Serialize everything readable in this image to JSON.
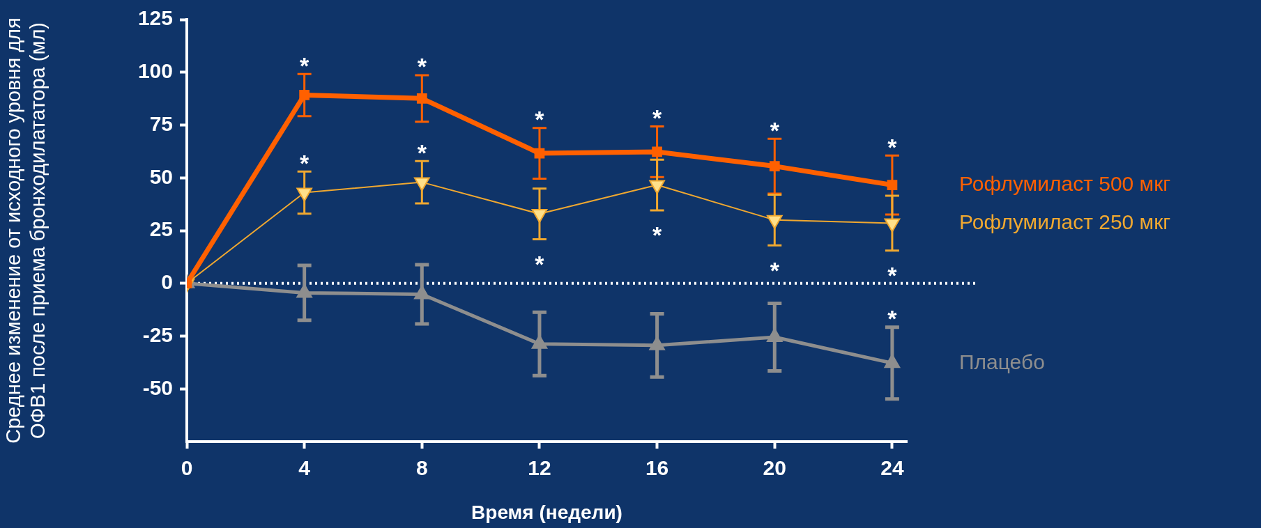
{
  "chart_data": {
    "type": "line",
    "xlabel": "Время (недели)",
    "ylabel": "Среднее изменение от исходного уровня для ОФВ1 после приема бронходилататора (мл)",
    "x": [
      0,
      4,
      8,
      12,
      16,
      20,
      24
    ],
    "xlim": [
      0,
      24.5
    ],
    "xticks": [
      0,
      4,
      8,
      12,
      16,
      20,
      24
    ],
    "ylim": [
      -75,
      125
    ],
    "yticks": [
      -50,
      -25,
      0,
      25,
      50,
      75,
      100,
      125
    ],
    "grid": false,
    "legend": false,
    "series": [
      {
        "name": "Рофлумиласт 500 мкг",
        "color": "#ff6000",
        "marker": "square",
        "values": [
          0,
          89.2,
          87.6,
          61.6,
          62.3,
          55.5,
          46.6
        ],
        "errors": [
          null,
          10,
          11,
          12,
          12,
          13,
          14
        ]
      },
      {
        "name": "Рофлумиласт 250 мкг",
        "color": "#f0a830",
        "marker": "triangle-down",
        "values": [
          0,
          43,
          47.9,
          32.9,
          46.6,
          30,
          28.5
        ],
        "errors": [
          null,
          10,
          10,
          12,
          12,
          12,
          13
        ]
      },
      {
        "name": "Плацебо",
        "color": "#8e8e8e",
        "marker": "triangle",
        "values": [
          0,
          -4.5,
          -5.2,
          -28.7,
          -29.4,
          -25.5,
          -37.8
        ],
        "errors": [
          null,
          13,
          14,
          15,
          15,
          16,
          17
        ]
      }
    ],
    "ref_lines": [
      {
        "axis": "y",
        "value": 0,
        "color": "#ffffff",
        "line_style": "dotted"
      }
    ],
    "annotations": [
      {
        "text": "*",
        "x": 4,
        "y": 89.2
      },
      {
        "text": "*",
        "x": 8,
        "y": 87.6
      },
      {
        "text": "*",
        "x": 12,
        "y": 61.6
      },
      {
        "text": "*",
        "x": 16,
        "y": 62.3
      },
      {
        "text": "*",
        "x": 20,
        "y": 55.5
      },
      {
        "text": "*",
        "x": 24,
        "y": 46.6
      },
      {
        "text": "*",
        "x": 4,
        "y": 43
      },
      {
        "text": "*",
        "x": 8,
        "y": 47.9
      },
      {
        "text": "*",
        "x": 12,
        "y": 32.9
      },
      {
        "text": "*",
        "x": 16,
        "y": 46.6
      },
      {
        "text": "*",
        "x": 20,
        "y": 30
      },
      {
        "text": "*",
        "x": 24,
        "y": 28.5
      },
      {
        "text": "*",
        "x": 24,
        "y": -37.8
      }
    ]
  }
}
